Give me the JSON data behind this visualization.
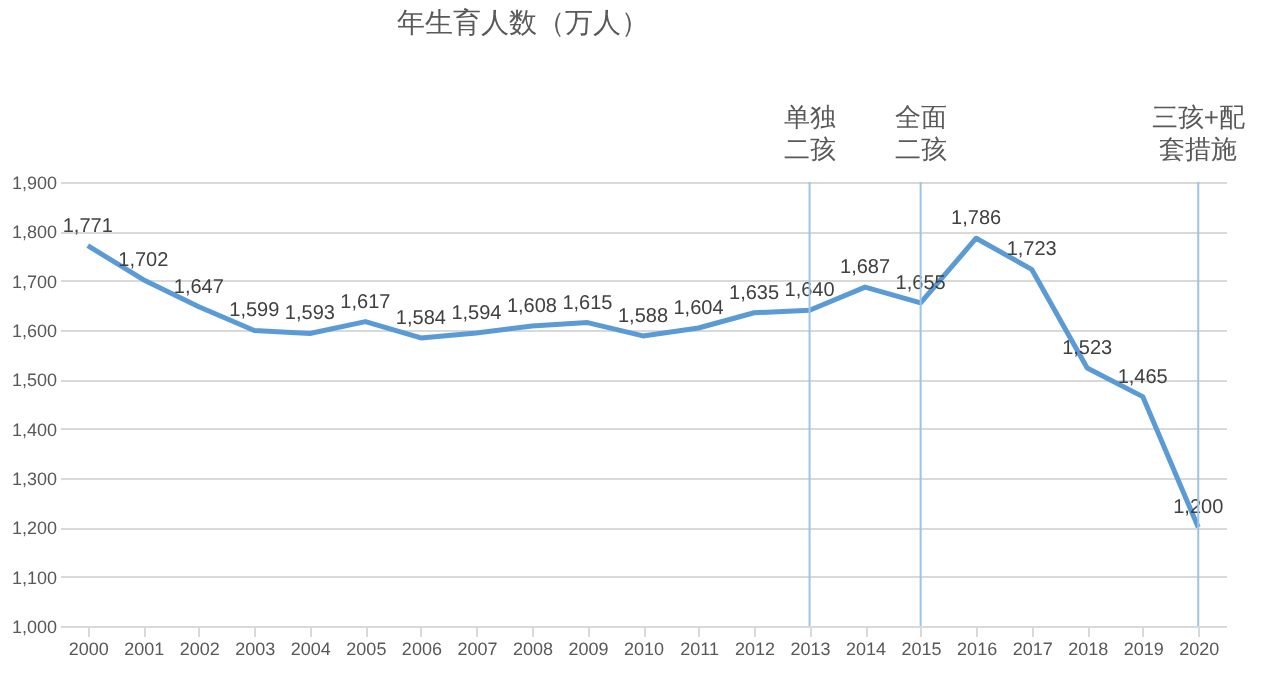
{
  "chart_data": {
    "type": "line",
    "title": "年生育人数（万人）",
    "categories": [
      "2000",
      "2001",
      "2002",
      "2003",
      "2004",
      "2005",
      "2006",
      "2007",
      "2008",
      "2009",
      "2010",
      "2011",
      "2012",
      "2013",
      "2014",
      "2015",
      "2016",
      "2017",
      "2018",
      "2019",
      "2020"
    ],
    "series": [
      {
        "color": "#5b9bd5",
        "values": [
          1771,
          1702,
          1647,
          1599,
          1593,
          1617,
          1584,
          1594,
          1608,
          1615,
          1588,
          1604,
          1635,
          1640,
          1687,
          1655,
          1786,
          1723,
          1523,
          1465,
          1200
        ],
        "value_labels": [
          "1,771",
          "1,702",
          "1,647",
          "1,599",
          "1,593",
          "1,617",
          "1,584",
          "1,594",
          "1,608",
          "1,615",
          "1,588",
          "1,604",
          "1,635",
          "1,640",
          "1,687",
          "1,655",
          "1,786",
          "1,723",
          "1,523",
          "1,465",
          "1,200"
        ]
      }
    ],
    "ylim": [
      1000,
      1900
    ],
    "yticks": [
      {
        "value": 1000,
        "label": "1,000"
      },
      {
        "value": 1100,
        "label": "1,100"
      },
      {
        "value": 1200,
        "label": "1,200"
      },
      {
        "value": 1300,
        "label": "1,300"
      },
      {
        "value": 1400,
        "label": "1,400"
      },
      {
        "value": 1500,
        "label": "1,500"
      },
      {
        "value": 1600,
        "label": "1,600"
      },
      {
        "value": 1700,
        "label": "1,700"
      },
      {
        "value": 1800,
        "label": "1,800"
      },
      {
        "value": 1900,
        "label": "1,900"
      }
    ],
    "grid": "y",
    "marker": "none",
    "line_style": "solid",
    "ref_lines": [
      {
        "axis": "x",
        "value": "2013",
        "label": "单独二孩",
        "color": "#9dc3e6"
      },
      {
        "axis": "x",
        "value": "2015",
        "label": "全面二孩",
        "color": "#9dc3e6"
      },
      {
        "axis": "x",
        "value": "2020",
        "label": "三孩+配套措施",
        "color": "#9dc3e6"
      }
    ]
  }
}
